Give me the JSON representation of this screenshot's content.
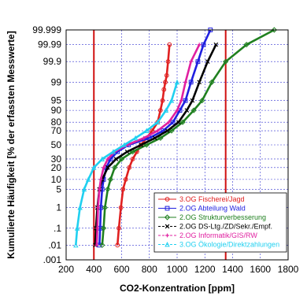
{
  "chart_data": {
    "type": "line",
    "xlabel": "CO2-Konzentration [ppm]",
    "ylabel": "Kumulierte Häufigkeit [% der erfassten Messwerte]",
    "xlim": [
      200,
      1800
    ],
    "x_ticks": [
      200,
      400,
      600,
      800,
      1000,
      1200,
      1400,
      1600,
      1800
    ],
    "y_scale": "probability",
    "y_tick_values": [
      0.001,
      0.01,
      0.1,
      1,
      5,
      10,
      20,
      30,
      50,
      70,
      80,
      90,
      95,
      99,
      99.9,
      99.99,
      99.999
    ],
    "y_tick_labels": [
      ".001",
      ".01",
      ".1",
      "1",
      "5",
      "10",
      "20",
      "30",
      "50",
      "70",
      "80",
      "90",
      "95",
      "99",
      "99.9",
      "99.99",
      "99.999"
    ],
    "reference_lines_x": [
      400,
      1350
    ],
    "grid": true,
    "legend_position": "bottom-right",
    "series": [
      {
        "name": "3.OG Fischerei/Jagd",
        "color": "#e02020",
        "marker": "circle",
        "x": [
          570,
          580,
          595,
          610,
          630,
          655,
          680,
          710,
          740,
          780,
          820,
          860,
          880,
          895,
          905,
          915,
          925,
          935,
          945
        ],
        "y": [
          0.01,
          0.1,
          1,
          5,
          10,
          20,
          30,
          40,
          50,
          60,
          70,
          80,
          90,
          95,
          98,
          99,
          99.5,
          99.9,
          99.99
        ]
      },
      {
        "name": "2.OG Abteilung Wald",
        "color": "#2020e0",
        "marker": "square",
        "x": [
          440,
          445,
          450,
          460,
          470,
          490,
          520,
          570,
          650,
          800,
          900,
          970,
          1020,
          1060,
          1100,
          1150,
          1190,
          1240
        ],
        "y": [
          0.01,
          0.1,
          1,
          5,
          10,
          20,
          30,
          40,
          50,
          60,
          70,
          80,
          90,
          95,
          99,
          99.9,
          99.99,
          99.999
        ]
      },
      {
        "name": "2.OG Strukturverbesserung",
        "color": "#208020",
        "marker": "diamond",
        "x": [
          460,
          470,
          480,
          500,
          520,
          550,
          600,
          680,
          780,
          880,
          960,
          1040,
          1120,
          1180,
          1250,
          1350,
          1500,
          1700
        ],
        "y": [
          0.01,
          0.1,
          1,
          5,
          10,
          20,
          30,
          40,
          50,
          60,
          70,
          80,
          90,
          95,
          99,
          99.9,
          99.99,
          99.999
        ]
      },
      {
        "name": "2.OG DS-Ltg./ZD/Sekr./Empf.",
        "color": "#000000",
        "marker": "x",
        "x": [
          410,
          415,
          425,
          440,
          460,
          500,
          560,
          640,
          740,
          840,
          930,
          1010,
          1070,
          1110,
          1160,
          1220,
          1280
        ],
        "y": [
          0.01,
          0.1,
          1,
          5,
          10,
          20,
          30,
          40,
          50,
          60,
          70,
          80,
          90,
          95,
          99,
          99.9,
          99.99
        ]
      },
      {
        "name": "2.OG Informatik/GIS/RW",
        "color": "#e020a0",
        "marker": "plus",
        "x": [
          420,
          425,
          430,
          440,
          450,
          470,
          500,
          550,
          640,
          760,
          860,
          940,
          1000,
          1030,
          1060,
          1100,
          1160
        ],
        "y": [
          0.01,
          0.1,
          1,
          5,
          10,
          20,
          30,
          40,
          50,
          60,
          70,
          80,
          90,
          95,
          99,
          99.9,
          99.99
        ]
      },
      {
        "name": "3.OG Ökologie/Direktzahlungen",
        "color": "#20d0f0",
        "marker": "triangle",
        "x": [
          270,
          280,
          300,
          330,
          360,
          400,
          460,
          540,
          620,
          700,
          780,
          860,
          920,
          960,
          1000
        ],
        "y": [
          0.01,
          0.1,
          1,
          5,
          10,
          20,
          30,
          40,
          50,
          60,
          70,
          80,
          90,
          95,
          99
        ]
      }
    ]
  }
}
